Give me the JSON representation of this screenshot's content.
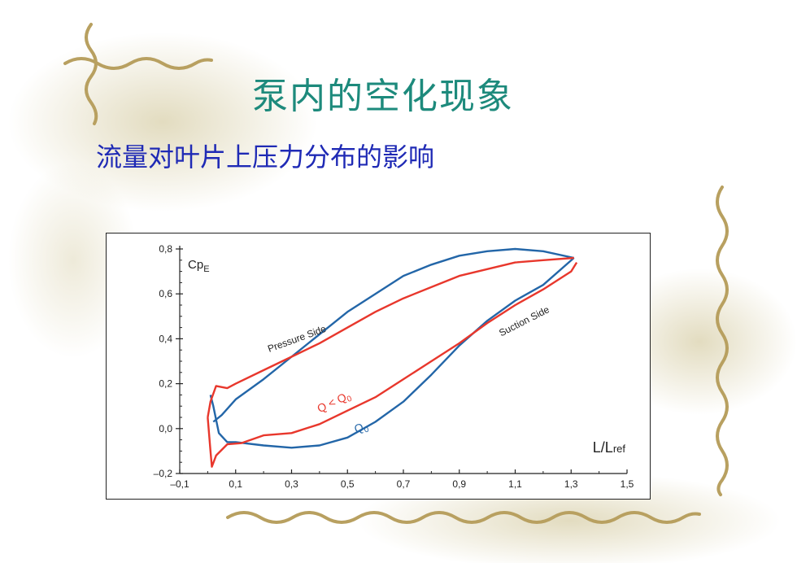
{
  "slide": {
    "title": "泵内的空化现象",
    "subtitle": "流量对叶片上压力分布的影响"
  },
  "colors": {
    "title": "#1d8a7c",
    "subtitle": "#1f2ab5",
    "q0_series": "#2366a8",
    "q_less_q0_series": "#e8372c",
    "vine_decoration": "#b8a060"
  },
  "chart_data": {
    "type": "line",
    "ylabel_main": "Cp",
    "ylabel_sub": "E",
    "xlabel_main": "L/L",
    "xlabel_sub": "ref",
    "xlim": [
      -0.1,
      1.5
    ],
    "ylim": [
      -0.2,
      0.8
    ],
    "x_ticks": [
      "–0,1",
      "0,1",
      "0,3",
      "0,5",
      "0,7",
      "0,9",
      "1,1",
      "1,3",
      "1,5"
    ],
    "y_ticks": [
      "0,8",
      "0,6",
      "0,4",
      "0,2",
      "0,0",
      "–0,2"
    ],
    "annotations": {
      "pressure_side": "Pressure Side",
      "suction_side": "Suction Side",
      "q_less_q0": "Q < Q",
      "q_less_q0_sub": "0",
      "q0": "Q",
      "q0_sub": "0"
    },
    "series": [
      {
        "id": "q0",
        "label": "Q0",
        "color": "#2366a8",
        "pressure_side": [
          [
            0.02,
            0.03
          ],
          [
            0.05,
            0.06
          ],
          [
            0.1,
            0.13
          ],
          [
            0.2,
            0.22
          ],
          [
            0.3,
            0.32
          ],
          [
            0.4,
            0.42
          ],
          [
            0.5,
            0.52
          ],
          [
            0.6,
            0.6
          ],
          [
            0.7,
            0.68
          ],
          [
            0.8,
            0.73
          ],
          [
            0.9,
            0.77
          ],
          [
            1.0,
            0.79
          ],
          [
            1.1,
            0.8
          ],
          [
            1.2,
            0.79
          ],
          [
            1.31,
            0.76
          ]
        ],
        "suction_side": [
          [
            0.01,
            0.15
          ],
          [
            0.02,
            0.1
          ],
          [
            0.04,
            -0.02
          ],
          [
            0.07,
            -0.06
          ],
          [
            0.1,
            -0.06
          ],
          [
            0.2,
            -0.075
          ],
          [
            0.3,
            -0.085
          ],
          [
            0.4,
            -0.075
          ],
          [
            0.5,
            -0.04
          ],
          [
            0.6,
            0.03
          ],
          [
            0.7,
            0.12
          ],
          [
            0.8,
            0.24
          ],
          [
            0.9,
            0.37
          ],
          [
            1.0,
            0.48
          ],
          [
            1.1,
            0.57
          ],
          [
            1.2,
            0.64
          ],
          [
            1.31,
            0.76
          ]
        ]
      },
      {
        "id": "q_less_q0",
        "label": "Q < Q0",
        "color": "#e8372c",
        "pressure_side": [
          [
            0.0,
            0.05
          ],
          [
            0.01,
            0.12
          ],
          [
            0.03,
            0.19
          ],
          [
            0.07,
            0.18
          ],
          [
            0.1,
            0.2
          ],
          [
            0.2,
            0.26
          ],
          [
            0.3,
            0.32
          ],
          [
            0.4,
            0.38
          ],
          [
            0.5,
            0.45
          ],
          [
            0.6,
            0.52
          ],
          [
            0.7,
            0.58
          ],
          [
            0.8,
            0.63
          ],
          [
            0.9,
            0.68
          ],
          [
            1.0,
            0.71
          ],
          [
            1.1,
            0.74
          ],
          [
            1.2,
            0.75
          ],
          [
            1.31,
            0.76
          ]
        ],
        "suction_side": [
          [
            0.0,
            0.05
          ],
          [
            0.01,
            -0.1
          ],
          [
            0.015,
            -0.17
          ],
          [
            0.03,
            -0.12
          ],
          [
            0.07,
            -0.07
          ],
          [
            0.12,
            -0.065
          ],
          [
            0.2,
            -0.03
          ],
          [
            0.3,
            -0.02
          ],
          [
            0.4,
            0.02
          ],
          [
            0.5,
            0.08
          ],
          [
            0.6,
            0.14
          ],
          [
            0.7,
            0.22
          ],
          [
            0.8,
            0.3
          ],
          [
            0.9,
            0.38
          ],
          [
            1.0,
            0.47
          ],
          [
            1.1,
            0.55
          ],
          [
            1.2,
            0.62
          ],
          [
            1.3,
            0.7
          ],
          [
            1.32,
            0.74
          ]
        ]
      }
    ]
  }
}
